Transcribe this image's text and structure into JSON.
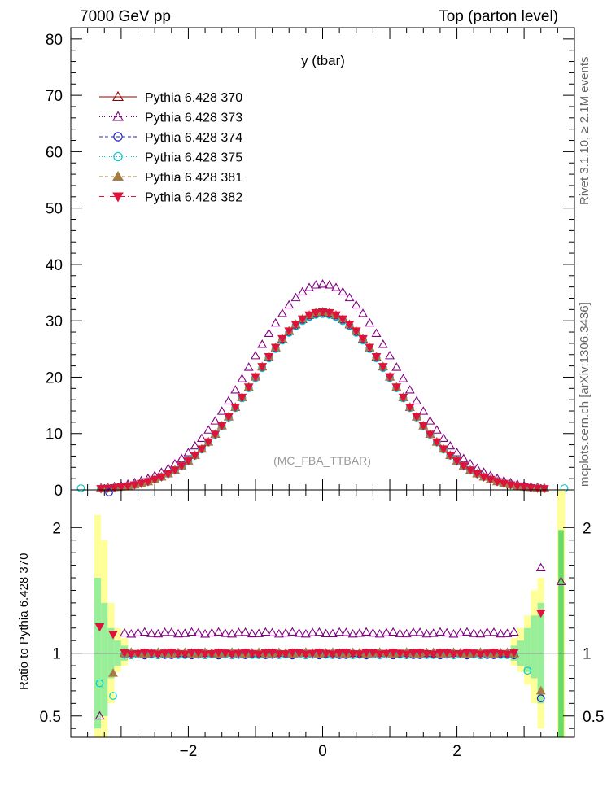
{
  "header": {
    "left": "7000 GeV pp",
    "right": "Top (parton level)"
  },
  "side_text": {
    "rivet": "Rivet 3.1.10, ≥ 2.1M events",
    "mcplots": "mcplots.cern.ch [arXiv:1306.3436]"
  },
  "chart_data": [
    {
      "type": "scatter",
      "panel": "main",
      "title": "y (tbar)",
      "watermark": "(MC_FBA_TTBAR)",
      "xlim": [
        -3.75,
        3.75
      ],
      "ylim": [
        0,
        82
      ],
      "y_ticks": [
        0,
        10,
        20,
        30,
        40,
        50,
        60,
        70,
        80
      ],
      "x_ticks": [
        -2,
        0,
        2
      ],
      "legend_position": "top-left",
      "series": [
        {
          "name": "Pythia 6.428 370",
          "color": "#8b0000",
          "marker": "triangle-open",
          "line": "solid",
          "peak": 31.5
        },
        {
          "name": "Pythia 6.428 373",
          "color": "#800080",
          "marker": "triangle-open",
          "line": "dotted",
          "peak": 36.5
        },
        {
          "name": "Pythia 6.428 374",
          "color": "#2222bb",
          "marker": "circle-open",
          "line": "dashed",
          "peak": 31.3
        },
        {
          "name": "Pythia 6.428 375",
          "color": "#00ced1",
          "marker": "circle-open",
          "line": "dotted",
          "peak": 31.2
        },
        {
          "name": "Pythia 6.428 381",
          "color": "#a67c45",
          "marker": "triangle-filled",
          "line": "dashed",
          "peak": 31.6
        },
        {
          "name": "Pythia 6.428 382",
          "color": "#dc143c",
          "marker": "triangle-down-filled",
          "line": "dashdot",
          "peak": 31.6
        }
      ],
      "shape": {
        "sigma": 1.05,
        "step": 0.1,
        "xmin": -3.3,
        "xmax": 3.3
      }
    },
    {
      "type": "scatter",
      "panel": "ratio",
      "ylabel": "Ratio to Pythia 6.428 370",
      "xlim": [
        -3.75,
        3.75
      ],
      "ylim": [
        0.33,
        2.3
      ],
      "y_ticks": [
        0.5,
        1,
        2
      ],
      "x_ticks": [
        -2,
        0,
        2
      ],
      "reference_line": 1,
      "series_ratio": [
        {
          "name": "Pythia 6.428 370",
          "level": 1.0
        },
        {
          "name": "Pythia 6.428 373",
          "level": 1.16
        },
        {
          "name": "Pythia 6.428 374",
          "level": 0.99
        },
        {
          "name": "Pythia 6.428 375",
          "level": 0.99
        },
        {
          "name": "Pythia 6.428 381",
          "level": 1.0
        },
        {
          "name": "Pythia 6.428 382",
          "level": 1.0
        }
      ],
      "edge_points": [
        {
          "series": 1,
          "x": -3.32,
          "y": 0.5
        },
        {
          "series": 1,
          "x": 3.55,
          "y": 1.57
        },
        {
          "series": 1,
          "x": 3.25,
          "y": 1.68
        },
        {
          "series": 2,
          "x": -3.18,
          "y": 2.3
        },
        {
          "series": 2,
          "x": 3.25,
          "y": 0.64
        },
        {
          "series": 3,
          "x": -3.32,
          "y": 0.76
        },
        {
          "series": 3,
          "x": -3.12,
          "y": 0.66
        },
        {
          "series": 3,
          "x": 3.05,
          "y": 0.86
        },
        {
          "series": 4,
          "x": -3.12,
          "y": 0.84
        },
        {
          "series": 4,
          "x": 3.25,
          "y": 0.7
        },
        {
          "series": 5,
          "x": -3.32,
          "y": 1.21
        },
        {
          "series": 5,
          "x": -3.12,
          "y": 1.15
        },
        {
          "series": 5,
          "x": 3.25,
          "y": 1.32
        }
      ]
    }
  ]
}
